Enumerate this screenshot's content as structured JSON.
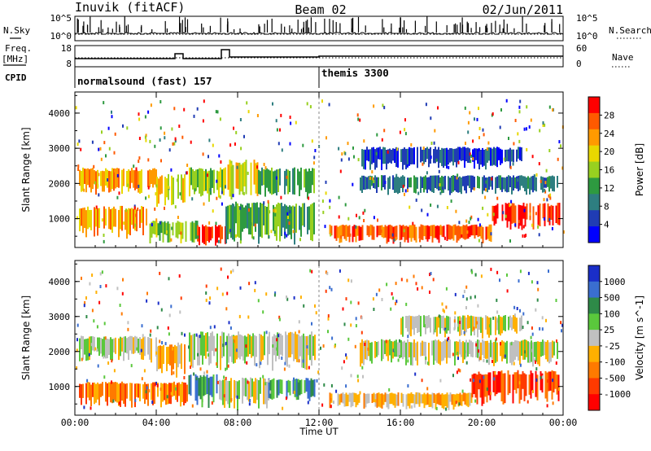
{
  "header": {
    "station": "Inuvik (fitACF)",
    "beam": "Beam 02",
    "date": "02/Jun/2011"
  },
  "top_panels": {
    "nsky_label": "N.Sky",
    "nsearch_label": "N.Search",
    "freq_label_top": "Freq.",
    "freq_label_unit": "[MHz]",
    "nave_label": "Nave",
    "cpid_label": "CPID",
    "noise_left_ticks": [
      "10^5",
      "10^0"
    ],
    "noise_right_ticks": [
      "10^5",
      "10^0"
    ],
    "freq_left_ticks": [
      "18",
      "8"
    ],
    "freq_right_ticks": [
      "60",
      "0"
    ],
    "cpid_programs": [
      {
        "name": "normalsound (fast)",
        "id": "157",
        "start_hour": 0
      },
      {
        "name": "themis",
        "id": "3300",
        "start_hour": 12
      }
    ]
  },
  "chart_data": [
    {
      "type": "heatmap",
      "panel": "power",
      "ylabel": "Slant Range [km]",
      "ylim": [
        180,
        4600
      ],
      "y_ticks": [
        "1000",
        "2000",
        "3000",
        "4000"
      ],
      "x_ticks": [
        "00:00",
        "04:00",
        "08:00",
        "12:00",
        "16:00",
        "20:00",
        "00:00"
      ],
      "xlim_hours": [
        0,
        24
      ],
      "colorbar": {
        "label": "Power [dB]",
        "ticks": [
          "28",
          "24",
          "20",
          "16",
          "12",
          "8",
          "4"
        ],
        "range": [
          0,
          30
        ],
        "colors": [
          "#ff0000",
          "#ff5a00",
          "#ff9a00",
          "#e8d800",
          "#98d020",
          "#2e9a40",
          "#2e7e80",
          "#203cb4",
          "#0000ff"
        ]
      },
      "bands": [
        {
          "t0": 0.2,
          "t1": 4.0,
          "r0": 1700,
          "r1": 2400,
          "level": 2
        },
        {
          "t0": 4.0,
          "t1": 5.4,
          "r0": 1300,
          "r1": 2200,
          "level": 3
        },
        {
          "t0": 5.6,
          "t1": 7.4,
          "r0": 1500,
          "r1": 2400,
          "level": 4
        },
        {
          "t0": 7.5,
          "t1": 9.0,
          "r0": 1500,
          "r1": 2600,
          "level": 3
        },
        {
          "t0": 9.0,
          "t1": 11.8,
          "r0": 1600,
          "r1": 2400,
          "level": 5
        },
        {
          "t0": 0.2,
          "t1": 3.5,
          "r0": 450,
          "r1": 1300,
          "level": 2
        },
        {
          "t0": 3.5,
          "t1": 6.0,
          "r0": 300,
          "r1": 900,
          "level": 4
        },
        {
          "t0": 6.0,
          "t1": 7.4,
          "r0": 200,
          "r1": 800,
          "level": 0
        },
        {
          "t0": 7.4,
          "t1": 11.8,
          "r0": 300,
          "r1": 1400,
          "level": 5
        },
        {
          "t0": 12.5,
          "t1": 20.5,
          "r0": 300,
          "r1": 800,
          "level": 1
        },
        {
          "t0": 20.5,
          "t1": 23.8,
          "r0": 700,
          "r1": 1400,
          "level": 0
        },
        {
          "t0": 14.0,
          "t1": 23.8,
          "r0": 1700,
          "r1": 2200,
          "level": 6
        },
        {
          "t0": 14.0,
          "t1": 22.0,
          "r0": 2400,
          "r1": 3000,
          "level": 7
        }
      ]
    },
    {
      "type": "heatmap",
      "panel": "velocity",
      "ylabel": "Slant Range [km]",
      "ylim": [
        180,
        4600
      ],
      "y_ticks": [
        "1000",
        "2000",
        "3000",
        "4000"
      ],
      "x_ticks": [
        "00:00",
        "04:00",
        "08:00",
        "12:00",
        "16:00",
        "20:00",
        "00:00"
      ],
      "xlim_hours": [
        0,
        24
      ],
      "xlabel": "Time UT",
      "colorbar": {
        "label": "Velocity [m s^-1]",
        "ticks": [
          "1000",
          "500",
          "100",
          "25",
          "-25",
          "-100",
          "-500",
          "-1000"
        ],
        "colors": [
          "#1a2ec8",
          "#3a6ed0",
          "#2e8a48",
          "#5ac83c",
          "#c0c0c0",
          "#ffb000",
          "#ff7a00",
          "#ff3a00",
          "#ff0000"
        ]
      },
      "bands": [
        {
          "t0": 0.2,
          "t1": 4.0,
          "r0": 1700,
          "r1": 2400,
          "level": 4
        },
        {
          "t0": 4.0,
          "t1": 5.4,
          "r0": 1300,
          "r1": 2200,
          "level": 5
        },
        {
          "t0": 5.6,
          "t1": 11.8,
          "r0": 1500,
          "r1": 2500,
          "level": 4
        },
        {
          "t0": 0.2,
          "t1": 5.5,
          "r0": 400,
          "r1": 1100,
          "level": 6
        },
        {
          "t0": 5.5,
          "t1": 7.0,
          "r0": 400,
          "r1": 1300,
          "level": 2
        },
        {
          "t0": 7.0,
          "t1": 9.5,
          "r0": 350,
          "r1": 1200,
          "level": 4
        },
        {
          "t0": 9.5,
          "t1": 11.8,
          "r0": 600,
          "r1": 1200,
          "level": 2
        },
        {
          "t0": 12.5,
          "t1": 19.5,
          "r0": 350,
          "r1": 800,
          "level": 5
        },
        {
          "t0": 19.5,
          "t1": 23.8,
          "r0": 500,
          "r1": 1400,
          "level": 7
        },
        {
          "t0": 14.0,
          "t1": 23.8,
          "r0": 1600,
          "r1": 2300,
          "level": 4
        },
        {
          "t0": 16.0,
          "t1": 22.0,
          "r0": 2400,
          "r1": 3000,
          "level": 4
        }
      ]
    }
  ]
}
